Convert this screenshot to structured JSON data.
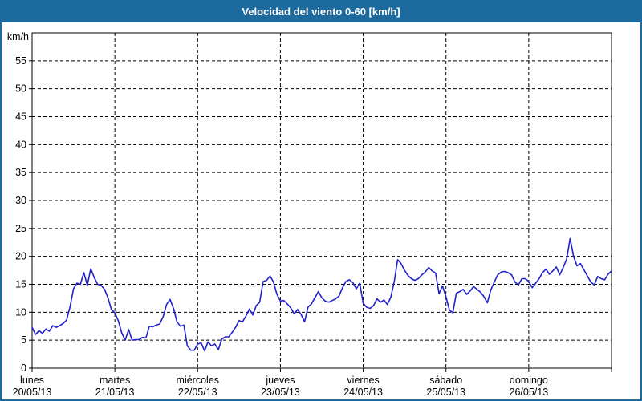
{
  "window": {
    "title": "Velocidad del viento 0-60 [km/h]"
  },
  "colors": {
    "titlebar": "#1d6a9e",
    "window_border": "#1d6a9e",
    "grid": "#000000",
    "axis": "#000000",
    "background": "#ffffff",
    "line": "#2222cc"
  },
  "chart_data": {
    "type": "line",
    "title": "Velocidad del viento 0-60 [km/h]",
    "unit_label": "km/h",
    "xlabel": "",
    "ylabel": "km/h",
    "ylim": [
      0,
      60
    ],
    "y_tick_step": 5,
    "y_tick_labels": [
      "0",
      "5",
      "10",
      "15",
      "20",
      "25",
      "30",
      "35",
      "40",
      "45",
      "50",
      "55"
    ],
    "grid": "dashed-black",
    "legend_position": "none",
    "x_axis_days": [
      {
        "name": "lunes",
        "date": "20/05/13"
      },
      {
        "name": "martes",
        "date": "21/05/13"
      },
      {
        "name": "miércoles",
        "date": "22/05/13"
      },
      {
        "name": "jueves",
        "date": "23/05/13"
      },
      {
        "name": "viernes",
        "date": "24/05/13"
      },
      {
        "name": "sábado",
        "date": "25/05/13"
      },
      {
        "name": "domingo",
        "date": "26/05/13"
      }
    ],
    "sampling": "hourly (24 points per day, Mon 20/05 00:00 through Sun 26/05 24:00)",
    "series": [
      {
        "name": "Velocidad del viento",
        "color": "#2222cc",
        "unit": "km/h",
        "values": [
          7.3,
          6.0,
          6.7,
          6.2,
          7.0,
          6.6,
          7.6,
          7.3,
          7.6,
          8.0,
          8.6,
          11.0,
          14.2,
          15.2,
          15.0,
          17.1,
          14.8,
          17.8,
          16.2,
          15.0,
          14.8,
          14.1,
          12.6,
          10.5,
          9.9,
          8.5,
          6.3,
          5.0,
          6.9,
          5.0,
          5.1,
          5.1,
          5.5,
          5.4,
          7.5,
          7.4,
          7.7,
          7.9,
          9.2,
          11.4,
          12.3,
          10.7,
          8.3,
          7.5,
          7.7,
          4.0,
          3.2,
          3.2,
          4.3,
          4.5,
          3.1,
          4.7,
          4.0,
          4.3,
          3.3,
          5.2,
          5.6,
          5.6,
          6.4,
          7.3,
          8.5,
          8.3,
          9.3,
          10.6,
          9.5,
          11.2,
          11.8,
          15.5,
          15.7,
          16.5,
          15.4,
          13.2,
          12.0,
          12.1,
          11.5,
          10.8,
          9.7,
          10.5,
          9.6,
          8.3,
          10.9,
          11.5,
          12.6,
          13.7,
          12.6,
          12.0,
          11.8,
          12.1,
          12.4,
          12.9,
          14.4,
          15.5,
          15.8,
          15.3,
          14.2,
          15.2,
          11.6,
          10.9,
          10.7,
          11.2,
          12.4,
          11.8,
          12.2,
          11.4,
          12.7,
          15.5,
          19.4,
          18.7,
          17.5,
          16.6,
          16.0,
          15.7,
          16.0,
          16.7,
          17.2,
          18.0,
          17.4,
          17.0,
          13.3,
          14.7,
          12.8,
          10.4,
          9.9,
          13.4,
          13.7,
          14.1,
          13.2,
          13.8,
          14.6,
          14.1,
          13.6,
          12.8,
          11.7,
          14.0,
          15.4,
          16.7,
          17.2,
          17.3,
          17.1,
          16.7,
          15.4,
          14.9,
          16.0,
          16.0,
          15.5,
          14.4,
          15.2,
          16.0,
          17.1,
          17.7,
          16.8,
          17.4,
          18.1,
          16.7,
          18.0,
          19.5,
          23.2,
          20.0,
          18.3,
          18.7,
          17.6,
          16.5,
          15.4,
          14.9,
          16.4,
          16.0,
          15.8,
          16.8,
          17.4
        ]
      }
    ]
  }
}
